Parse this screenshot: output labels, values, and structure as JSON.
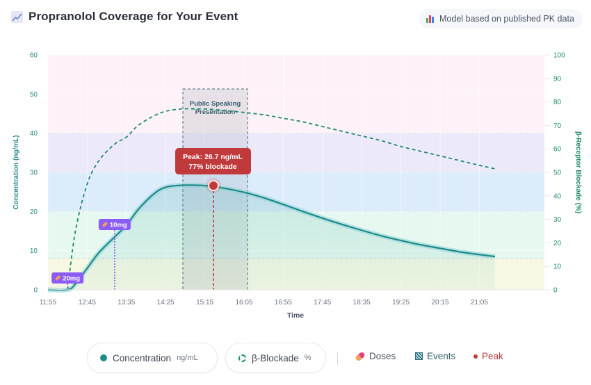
{
  "header": {
    "title": "Propranolol Coverage for Your Event",
    "title_icon": "chart-increasing-icon",
    "badge_text": "Model based on published PK data",
    "badge_icon": "bar-chart-icon"
  },
  "chart_data": {
    "type": "line",
    "title": "Propranolol Coverage for Your Event",
    "xlabel": "Time",
    "ylabel": "Concentration (ng/mL)",
    "y2label": "β-Receptor Blockade (%)",
    "x_ticks": [
      "11:55",
      "12:45",
      "13:35",
      "14:25",
      "15:15",
      "16:05",
      "16:55",
      "17:45",
      "18:35",
      "19:25",
      "20:15",
      "21:05"
    ],
    "y_ticks": [
      0,
      10,
      20,
      30,
      40,
      50,
      60
    ],
    "y2_ticks": [
      0,
      10,
      20,
      30,
      40,
      50,
      60,
      70,
      80,
      90,
      100
    ],
    "ylim": [
      0,
      60
    ],
    "y2lim": [
      0,
      100
    ],
    "grid": true,
    "legend_position": "bottom",
    "bands": [
      {
        "from": 0,
        "to": 8,
        "color": "#f6f8e4"
      },
      {
        "from": 8,
        "to": 20,
        "color": "#e6f8ef"
      },
      {
        "from": 20,
        "to": 30,
        "color": "#dcecfb"
      },
      {
        "from": 30,
        "to": 40,
        "color": "#ece9fb"
      },
      {
        "from": 40,
        "to": 60,
        "color": "#fdf2f8"
      }
    ],
    "series": [
      {
        "name": "Concentration",
        "unit": "ng/mL",
        "axis": "left",
        "style": "solid",
        "color": "#1e8a8a",
        "x": [
          "11:55",
          "12:20",
          "12:30",
          "12:45",
          "13:00",
          "13:20",
          "13:35",
          "13:50",
          "14:10",
          "14:25",
          "14:45",
          "15:05",
          "15:15",
          "15:35",
          "16:05",
          "16:30",
          "16:55",
          "17:20",
          "17:45",
          "18:10",
          "18:35",
          "19:00",
          "19:25",
          "19:50",
          "20:15",
          "20:40",
          "21:05",
          "21:25"
        ],
        "values": [
          0,
          0,
          1.5,
          5.5,
          9.5,
          13.5,
          16.5,
          20.5,
          24.5,
          26.2,
          26.7,
          26.7,
          26.6,
          26.1,
          24.9,
          23.5,
          21.8,
          20.0,
          18.3,
          16.7,
          15.2,
          13.8,
          12.6,
          11.5,
          10.6,
          9.7,
          9.0,
          8.5
        ]
      },
      {
        "name": "β-Blockade",
        "unit": "%",
        "axis": "right",
        "style": "dashed",
        "color": "#1e8a6a",
        "x": [
          "12:20",
          "12:30",
          "12:45",
          "13:00",
          "13:20",
          "13:35",
          "13:50",
          "14:10",
          "14:25",
          "14:45",
          "15:05",
          "15:15",
          "15:35",
          "16:05",
          "16:30",
          "16:55",
          "17:20",
          "17:45",
          "18:10",
          "18:35",
          "19:00",
          "19:25",
          "19:50",
          "20:15",
          "20:40",
          "21:05",
          "21:25"
        ],
        "values": [
          0,
          25,
          45,
          55,
          62,
          65,
          70,
          74,
          76,
          77,
          77,
          77,
          76.5,
          75.5,
          74.5,
          73,
          71.5,
          69.5,
          67.5,
          65.5,
          63.5,
          61,
          59,
          57,
          55,
          53,
          51.5
        ]
      }
    ],
    "doses": [
      {
        "time": "12:20",
        "label": "20mg"
      },
      {
        "time": "13:20",
        "label": "10mg"
      }
    ],
    "events": [
      {
        "label_line1": "Public Speaking",
        "label_line2": "Presentation",
        "start": "14:25",
        "end": "15:35"
      }
    ],
    "peak": {
      "time": "15:00",
      "concentration": 26.7,
      "blockade": 77,
      "label_line1": "Peak: 26.7 ng/mL",
      "label_line2": "77% blockade"
    }
  },
  "legend": {
    "concentration_label": "Concentration",
    "concentration_unit": "ng/mL",
    "blockade_label": "β-Blockade",
    "blockade_unit": "%",
    "doses_label": "Doses",
    "events_label": "Events",
    "peak_label": "Peak"
  },
  "colors": {
    "concentration": "#1e8a8a",
    "blockade": "#1e8a6a",
    "dose": "#8b5cf6",
    "peak": "#c0393b",
    "event": "#4b6a78"
  }
}
